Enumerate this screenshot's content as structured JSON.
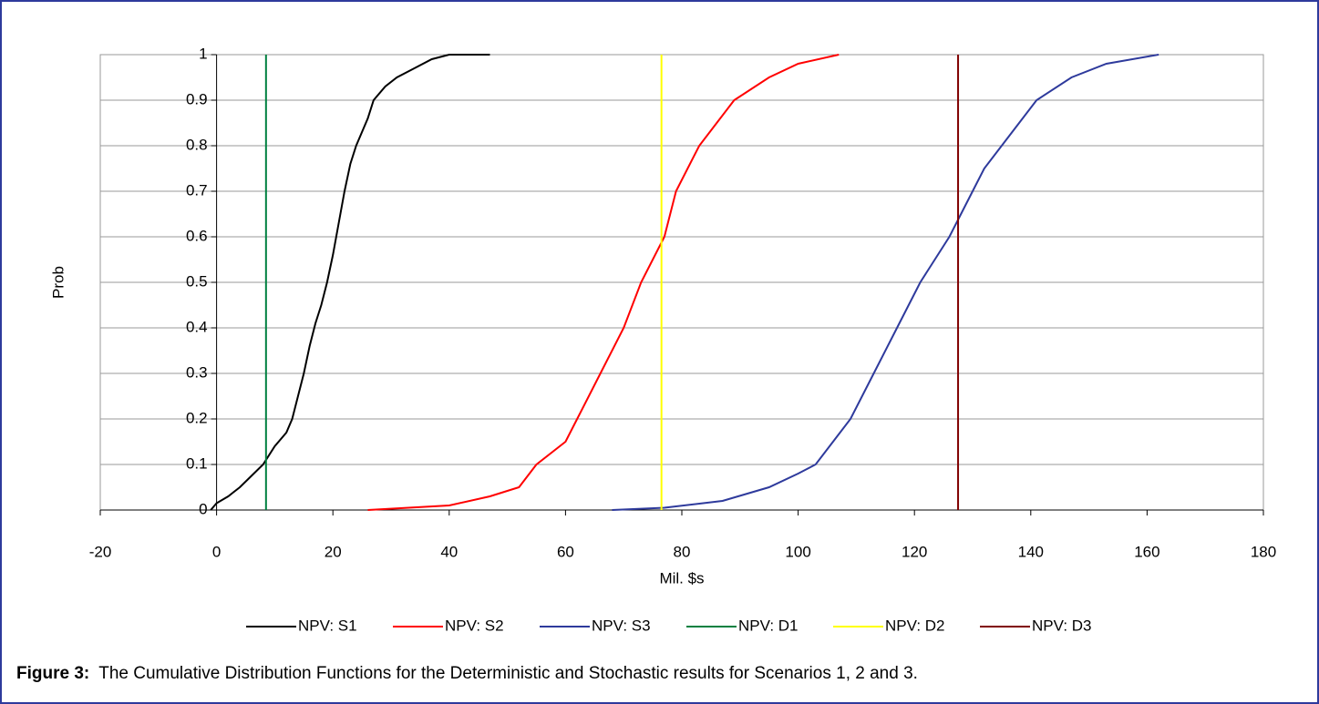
{
  "chart_data": {
    "type": "line",
    "xlabel": "Mil. $s",
    "ylabel": "Prob",
    "xlim": [
      -20,
      180
    ],
    "xticks": [
      -20,
      0,
      20,
      40,
      60,
      80,
      100,
      120,
      140,
      160,
      180
    ],
    "ylim": [
      0,
      1
    ],
    "yticks": [
      0,
      0.1,
      0.2,
      0.3,
      0.4,
      0.5,
      0.6,
      0.7,
      0.8,
      0.9,
      1
    ],
    "grid": true,
    "legend": "bottom",
    "series": [
      {
        "name": "NPV: S1",
        "color": "#000000",
        "x": [
          -1,
          0,
          2,
          4,
          6,
          8,
          10,
          12,
          13,
          14,
          15,
          16,
          17,
          18,
          19,
          20,
          21,
          22,
          23,
          24,
          25,
          26,
          27,
          29,
          31,
          34,
          37,
          40,
          47
        ],
        "values": [
          0,
          0.015,
          0.03,
          0.05,
          0.075,
          0.1,
          0.14,
          0.17,
          0.2,
          0.25,
          0.3,
          0.36,
          0.41,
          0.45,
          0.5,
          0.56,
          0.63,
          0.7,
          0.76,
          0.8,
          0.83,
          0.86,
          0.9,
          0.93,
          0.95,
          0.97,
          0.99,
          1,
          1
        ]
      },
      {
        "name": "NPV: S2",
        "color": "#ff0000",
        "x": [
          26,
          33,
          40,
          47,
          52,
          55,
          60,
          62,
          66,
          70,
          73,
          77,
          79,
          83,
          86,
          89,
          95,
          100,
          107
        ],
        "values": [
          0,
          0.005,
          0.01,
          0.03,
          0.05,
          0.1,
          0.15,
          0.2,
          0.3,
          0.4,
          0.5,
          0.6,
          0.7,
          0.8,
          0.85,
          0.9,
          0.95,
          0.98,
          1
        ]
      },
      {
        "name": "NPV: S3",
        "color": "#2e3a9c",
        "x": [
          68,
          77,
          87,
          95,
          100,
          103,
          106,
          109,
          113,
          117,
          121,
          126,
          128,
          130,
          132,
          135,
          138,
          141,
          147,
          153,
          162
        ],
        "values": [
          0,
          0.005,
          0.02,
          0.05,
          0.08,
          0.1,
          0.15,
          0.2,
          0.3,
          0.4,
          0.5,
          0.6,
          0.65,
          0.7,
          0.75,
          0.8,
          0.85,
          0.9,
          0.95,
          0.98,
          1
        ]
      },
      {
        "name": "NPV: D1",
        "color": "#008040",
        "x": [
          8.5,
          8.5
        ],
        "values": [
          0,
          1
        ]
      },
      {
        "name": "NPV: D2",
        "color": "#ffff00",
        "x": [
          76.5,
          76.5
        ],
        "values": [
          0,
          1
        ]
      },
      {
        "name": "NPV: D3",
        "color": "#800000",
        "x": [
          127.5,
          127.5
        ],
        "values": [
          0,
          1
        ]
      }
    ]
  },
  "caption": {
    "label": "Figure 3:",
    "text": "The Cumulative Distribution Functions for the Deterministic and Stochastic results for Scenarios 1, 2 and 3."
  }
}
